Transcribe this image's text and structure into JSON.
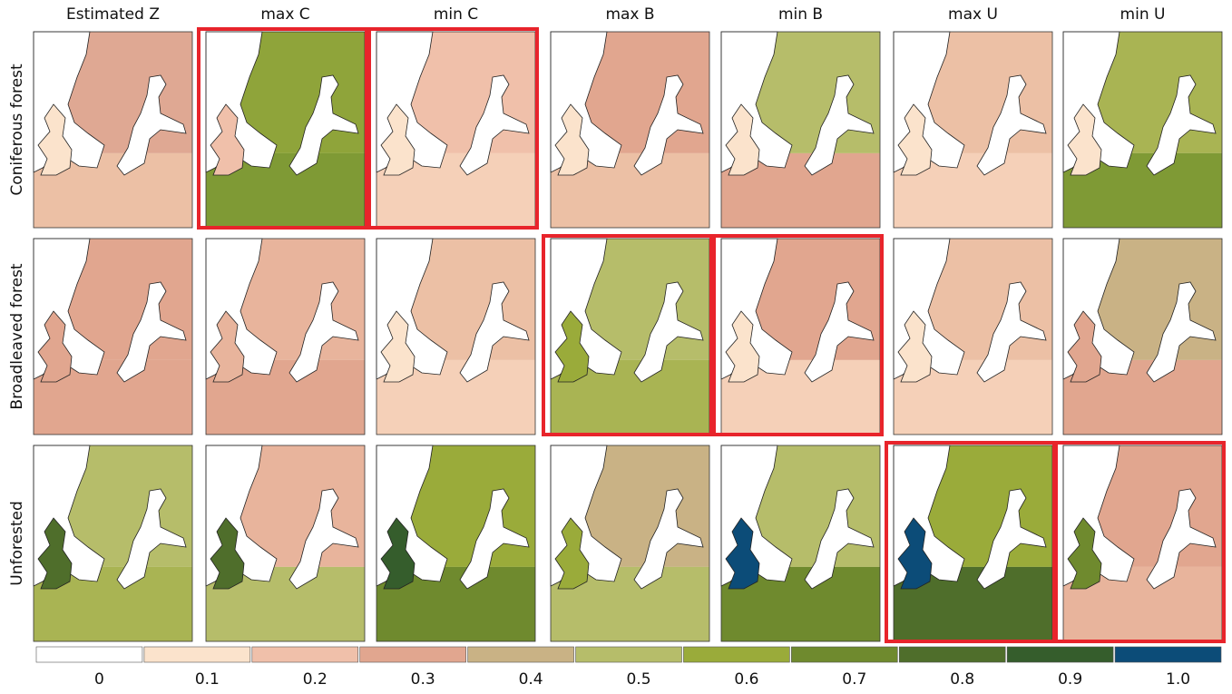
{
  "columns": [
    "Estimated Z",
    "max C",
    "min C",
    "max B",
    "min B",
    "max U",
    "min U"
  ],
  "rows": [
    {
      "label": "Coniferous forest",
      "panels": [
        {
          "north": "#dfa893",
          "south": "#ecc0a5",
          "uk": "#fbe3cc",
          "highlighted": false
        },
        {
          "north": "#8fa43a",
          "south": "#7f9a35",
          "uk": "#f0c0aa",
          "highlighted": true
        },
        {
          "north": "#f0c0aa",
          "south": "#f5d0b8",
          "uk": "#fbe3cc",
          "highlighted": true
        },
        {
          "north": "#e1a68f",
          "south": "#ecc0a5",
          "uk": "#fbe3cc",
          "highlighted": false
        },
        {
          "north": "#b6bd6a",
          "south": "#e1a68f",
          "uk": "#fbe3cc",
          "highlighted": false
        },
        {
          "north": "#ecc0a5",
          "south": "#f5d0b8",
          "uk": "#fbe3cc",
          "highlighted": false
        },
        {
          "north": "#a9b453",
          "south": "#7f9a35",
          "uk": "#fbe3cc",
          "highlighted": false
        }
      ]
    },
    {
      "label": "Broadleaved forest",
      "panels": [
        {
          "north": "#e1a68f",
          "south": "#e1a68f",
          "uk": "#e1a68f",
          "highlighted": false
        },
        {
          "north": "#e8b49c",
          "south": "#e1a68f",
          "uk": "#e8b49c",
          "highlighted": false
        },
        {
          "north": "#ecc0a5",
          "south": "#f5d0b8",
          "uk": "#fbe3cc",
          "highlighted": false
        },
        {
          "north": "#b6bd6a",
          "south": "#a9b453",
          "uk": "#9aab3a",
          "highlighted": true
        },
        {
          "north": "#e1a68f",
          "south": "#f5d0b8",
          "uk": "#fbe3cc",
          "highlighted": true
        },
        {
          "north": "#ecc0a5",
          "south": "#f5d0b8",
          "uk": "#fbe3cc",
          "highlighted": false
        },
        {
          "north": "#c9b285",
          "south": "#e1a68f",
          "uk": "#e1a68f",
          "highlighted": false
        }
      ]
    },
    {
      "label": "Unforested",
      "panels": [
        {
          "north": "#b6bd6a",
          "south": "#a9b453",
          "uk": "#4f6e2b",
          "highlighted": false
        },
        {
          "north": "#e8b49c",
          "south": "#b6bd6a",
          "uk": "#4f6e2b",
          "highlighted": false
        },
        {
          "north": "#9aab3a",
          "south": "#6f8a2e",
          "uk": "#355d2c",
          "highlighted": false
        },
        {
          "north": "#c9b285",
          "south": "#b6bd6a",
          "uk": "#9aab3a",
          "highlighted": false
        },
        {
          "north": "#b6bd6a",
          "south": "#6f8a2e",
          "uk": "#0c4c78",
          "highlighted": false
        },
        {
          "north": "#9aab3a",
          "south": "#4f6e2b",
          "uk": "#0c4c78",
          "highlighted": true
        },
        {
          "north": "#e1a68f",
          "south": "#e8b49c",
          "uk": "#6f8a2e",
          "highlighted": true
        }
      ]
    }
  ],
  "legend": [
    {
      "label": "0",
      "color": "#ffffff"
    },
    {
      "label": "0.1",
      "color": "#fbe3cc"
    },
    {
      "label": "0.2",
      "color": "#f0c0aa"
    },
    {
      "label": "0.3",
      "color": "#e1a68f"
    },
    {
      "label": "0.4",
      "color": "#c9b285"
    },
    {
      "label": "0.5",
      "color": "#b6bd6a"
    },
    {
      "label": "0.6",
      "color": "#9aab3a"
    },
    {
      "label": "0.7",
      "color": "#6f8a2e"
    },
    {
      "label": "0.8",
      "color": "#4f6e2b"
    },
    {
      "label": "0.9",
      "color": "#355d2c"
    },
    {
      "label": "1.0",
      "color": "#0c4c78"
    }
  ]
}
